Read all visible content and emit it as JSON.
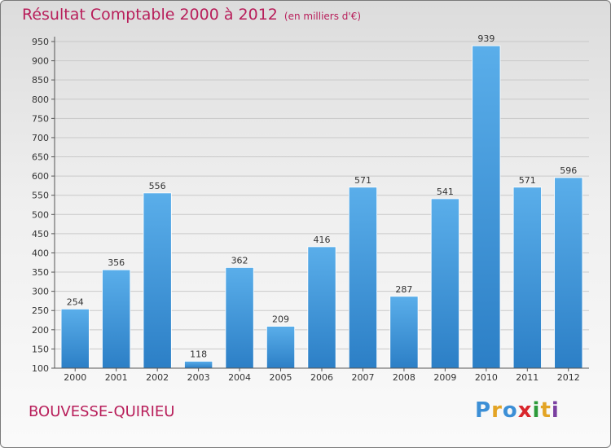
{
  "title": "Résultat Comptable 2000 à 2012",
  "subtitle": "(en milliers d'€)",
  "place": "BOUVESSE-QUIRIEU",
  "logo": {
    "text": [
      "P",
      "r",
      "o",
      "x",
      "i",
      "t",
      "i"
    ]
  },
  "colors": {
    "bar": "#3d8fd6",
    "title": "#b81e5a",
    "grid": "#c9c9c9"
  },
  "chart_data": {
    "type": "bar",
    "title": "Résultat Comptable 2000 à 2012",
    "subtitle": "(en milliers d'€)",
    "xlabel": "",
    "ylabel": "",
    "categories": [
      "2000",
      "2001",
      "2002",
      "2003",
      "2004",
      "2005",
      "2006",
      "2007",
      "2008",
      "2009",
      "2010",
      "2011",
      "2012"
    ],
    "values": [
      254,
      356,
      556,
      118,
      362,
      209,
      416,
      571,
      287,
      541,
      939,
      571,
      596
    ],
    "ylim": [
      100,
      950
    ],
    "yticks": [
      100,
      150,
      200,
      250,
      300,
      350,
      400,
      450,
      500,
      550,
      600,
      650,
      700,
      750,
      800,
      850,
      900,
      950
    ],
    "grid": true
  }
}
